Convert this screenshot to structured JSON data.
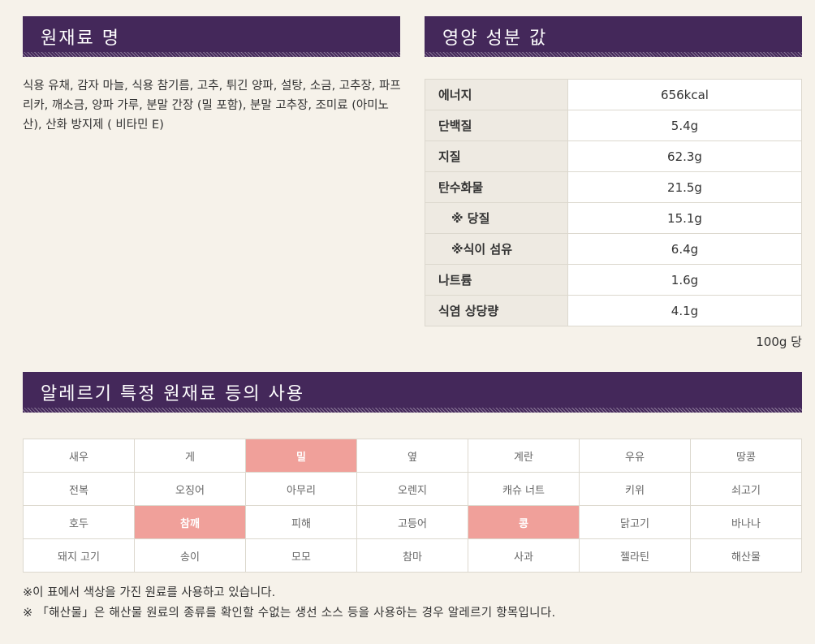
{
  "ingredients": {
    "title": "원재료 명",
    "text": "식용 유채, 감자 마늘, 식용 참기름, 고추, 튀긴 양파, 설탕, 소금, 고추장, 파프리카, 깨소금, 양파 가루, 분말 간장 (밀 포함), 분말 고추장, 조미료 (아미노산), 산화 방지제 ( 비타민 E)"
  },
  "nutrition": {
    "title": "영양 성분 값",
    "rows": [
      {
        "name": "에너지",
        "value": "656kcal"
      },
      {
        "name": "단백질",
        "value": "5.4g"
      },
      {
        "name": "지질",
        "value": "62.3g"
      },
      {
        "name": "탄수화물",
        "value": "21.5g"
      },
      {
        "name": "※ 당질",
        "value": "15.1g"
      },
      {
        "name": "※식이 섬유",
        "value": "6.4g"
      },
      {
        "name": "나트륨",
        "value": "1.6g"
      },
      {
        "name": "식염 상당량",
        "value": "4.1g"
      }
    ],
    "per_note": "100g 당"
  },
  "allergens": {
    "title": "알레르기 특정 원재료 등의 사용",
    "highlight_color": "#f0a09a",
    "rows": [
      [
        {
          "label": "새우",
          "used": false
        },
        {
          "label": "게",
          "used": false
        },
        {
          "label": "밀",
          "used": true
        },
        {
          "label": "옆",
          "used": false
        },
        {
          "label": "계란",
          "used": false
        },
        {
          "label": "우유",
          "used": false
        },
        {
          "label": "땅콩",
          "used": false
        }
      ],
      [
        {
          "label": "전복",
          "used": false
        },
        {
          "label": "오징어",
          "used": false
        },
        {
          "label": "아무리",
          "used": false
        },
        {
          "label": "오렌지",
          "used": false
        },
        {
          "label": "캐슈 너트",
          "used": false
        },
        {
          "label": "키위",
          "used": false
        },
        {
          "label": "쇠고기",
          "used": false
        }
      ],
      [
        {
          "label": "호두",
          "used": false
        },
        {
          "label": "참깨",
          "used": true
        },
        {
          "label": "피해",
          "used": false
        },
        {
          "label": "고등어",
          "used": false
        },
        {
          "label": "콩",
          "used": true
        },
        {
          "label": "닭고기",
          "used": false
        },
        {
          "label": "바나나",
          "used": false
        }
      ],
      [
        {
          "label": "돼지 고기",
          "used": false
        },
        {
          "label": "송이",
          "used": false
        },
        {
          "label": "모모",
          "used": false
        },
        {
          "label": "참마",
          "used": false
        },
        {
          "label": "사과",
          "used": false
        },
        {
          "label": "젤라틴",
          "used": false
        },
        {
          "label": "해산물",
          "used": false
        }
      ]
    ]
  },
  "footnotes": [
    "※이 표에서 색상을 가진 원료를 사용하고 있습니다.",
    "※ 「해산물」은 해산물 원료의 종류를 확인할 수없는 생선 소스 등을 사용하는 경우 알레르기 항목입니다."
  ]
}
